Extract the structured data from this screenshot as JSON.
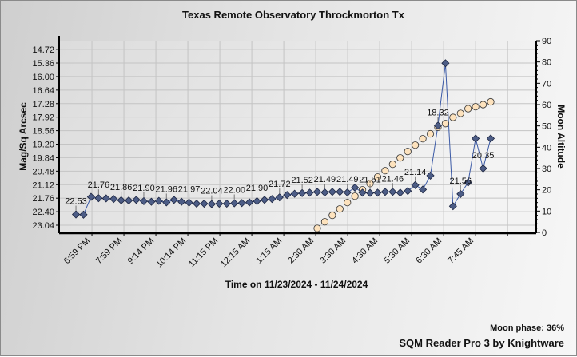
{
  "chart_data": {
    "type": "line",
    "title": "Texas Remote Observatory   Throckmorton Tx",
    "xlabel": "Time on 11/23/2024 - 11/24/2024",
    "ylabel": "Mag/Sq Arcsec",
    "y2label": "Moon Altitude",
    "ylim": [
      23.38,
      14.3
    ],
    "y2lim": [
      0,
      90
    ],
    "xlim": [
      -2.23,
      61.04
    ],
    "grid": true,
    "y_ticks": [
      "14.72",
      "15.36",
      "16.00",
      "16.64",
      "17.28",
      "17.92",
      "18.56",
      "19.20",
      "19.84",
      "20.48",
      "21.12",
      "21.76",
      "22.40",
      "23.04"
    ],
    "y2_ticks": [
      0,
      10,
      20,
      30,
      40,
      50,
      60,
      70,
      80,
      90
    ],
    "x_ticks": [
      {
        "pos": 2.12,
        "label": "6:59 PM"
      },
      {
        "pos": 6.36,
        "label": "7:59 PM"
      },
      {
        "pos": 10.6,
        "label": "9:14 PM"
      },
      {
        "pos": 14.84,
        "label": "10:14 PM"
      },
      {
        "pos": 19.08,
        "label": "11:15 PM"
      },
      {
        "pos": 23.32,
        "label": "12:15 AM"
      },
      {
        "pos": 27.56,
        "label": "1:15 AM"
      },
      {
        "pos": 31.8,
        "label": "2:30 AM"
      },
      {
        "pos": 36.04,
        "label": "3:30 AM"
      },
      {
        "pos": 40.28,
        "label": "4:30 AM"
      },
      {
        "pos": 44.52,
        "label": "5:30 AM"
      },
      {
        "pos": 48.76,
        "label": "6:30 AM"
      },
      {
        "pos": 53.0,
        "label": "7:45 AM"
      },
      {
        "pos": 57.24,
        "label": ""
      }
    ],
    "series": [
      {
        "name": "Mag/Sq Arcsec",
        "axis": "left",
        "color": "#3b5aa6",
        "marker": "diamond",
        "values": [
          22.53,
          22.54,
          21.7,
          21.76,
          21.77,
          21.8,
          21.86,
          21.87,
          21.84,
          21.9,
          21.93,
          21.89,
          21.96,
          21.84,
          21.93,
          21.97,
          22.02,
          22.02,
          22.04,
          22.02,
          22.02,
          22.0,
          21.99,
          21.96,
          21.9,
          21.84,
          21.8,
          21.72,
          21.61,
          21.55,
          21.52,
          21.5,
          21.46,
          21.49,
          21.46,
          21.46,
          21.49,
          21.26,
          21.5,
          21.51,
          21.5,
          21.46,
          21.46,
          21.5,
          21.42,
          21.14,
          21.35,
          20.69,
          18.32,
          15.37,
          22.14,
          21.56,
          21.02,
          18.93,
          20.35,
          18.93
        ],
        "label_every": 3,
        "labels": [
          "22.53",
          "21.76",
          "21.86",
          "21.90",
          "21.96",
          "21.97",
          "22.04",
          "22.00",
          "21.90",
          "21.72",
          "21.52",
          "21.49",
          "21.49",
          "21.51",
          "21.46",
          "21.14",
          "18.32",
          "21.56",
          "20.35"
        ]
      },
      {
        "name": "Moon Altitude",
        "axis": "right",
        "color": "#fde2bd",
        "marker": "circle",
        "values": [
          null,
          null,
          null,
          null,
          null,
          null,
          null,
          null,
          null,
          null,
          null,
          null,
          null,
          null,
          null,
          null,
          null,
          null,
          null,
          null,
          null,
          null,
          null,
          null,
          null,
          null,
          null,
          null,
          null,
          null,
          null,
          null,
          1.9,
          5.0,
          8.0,
          11.0,
          14.0,
          17.0,
          20.0,
          22.9,
          26.0,
          29.0,
          32.0,
          35.0,
          38.0,
          41.0,
          44.0,
          46.3,
          49.4,
          51.1,
          54.0,
          55.9,
          58.1,
          59.0,
          60.0,
          61.3
        ]
      }
    ]
  },
  "footer": {
    "moon_phase": "Moon phase: 36%",
    "credit": "SQM Reader Pro 3 by Knightware"
  }
}
